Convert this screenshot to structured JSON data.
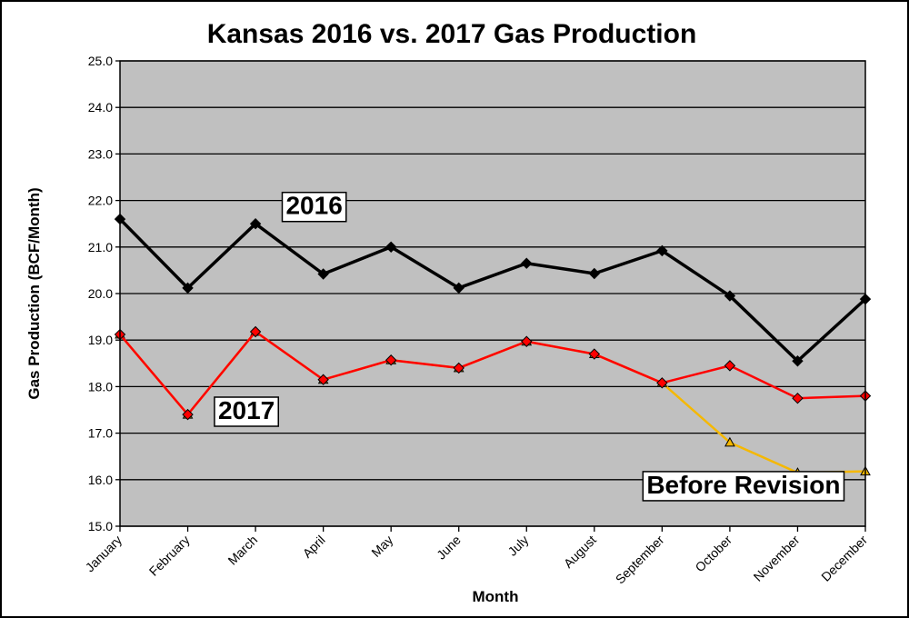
{
  "chart_data": {
    "type": "line",
    "title": "Kansas 2016 vs. 2017 Gas Production",
    "xlabel": "Month",
    "ylabel": "Gas Production (BCF/Month)",
    "ylim": [
      15.0,
      25.0
    ],
    "yticks": [
      "15.0",
      "16.0",
      "17.0",
      "18.0",
      "19.0",
      "20.0",
      "21.0",
      "22.0",
      "23.0",
      "24.0",
      "25.0"
    ],
    "grid": true,
    "plot_background": "#c0c0c0",
    "categories": [
      "January",
      "February",
      "March",
      "April",
      "May",
      "June",
      "July",
      "August",
      "September",
      "October",
      "November",
      "December"
    ],
    "series": [
      {
        "name": "2016",
        "color": "#000000",
        "marker": "diamond",
        "values": [
          21.6,
          20.12,
          21.5,
          20.42,
          21.0,
          20.12,
          20.65,
          20.43,
          20.92,
          19.95,
          18.55,
          19.88
        ]
      },
      {
        "name": "Before Revision",
        "color": "#f5b800",
        "marker": "triangle",
        "values": [
          19.12,
          17.4,
          19.18,
          18.15,
          18.57,
          18.4,
          18.97,
          18.7,
          18.08,
          16.8,
          16.15,
          16.18
        ]
      },
      {
        "name": "2017",
        "color": "#ff0000",
        "marker": "diamond",
        "values": [
          19.12,
          17.4,
          19.18,
          18.15,
          18.57,
          18.4,
          18.97,
          18.7,
          18.08,
          18.45,
          17.75,
          17.8
        ]
      }
    ],
    "annotations": [
      {
        "text": "2016",
        "series": "2016",
        "anchor_month": "April",
        "anchor_value": 21.9
      },
      {
        "text": "2017",
        "series": "2017",
        "anchor_month": "March",
        "anchor_value": 17.5
      },
      {
        "text": "Before Revision",
        "series": "Before Revision",
        "anchor_month": "October",
        "anchor_value": 15.9
      }
    ]
  }
}
